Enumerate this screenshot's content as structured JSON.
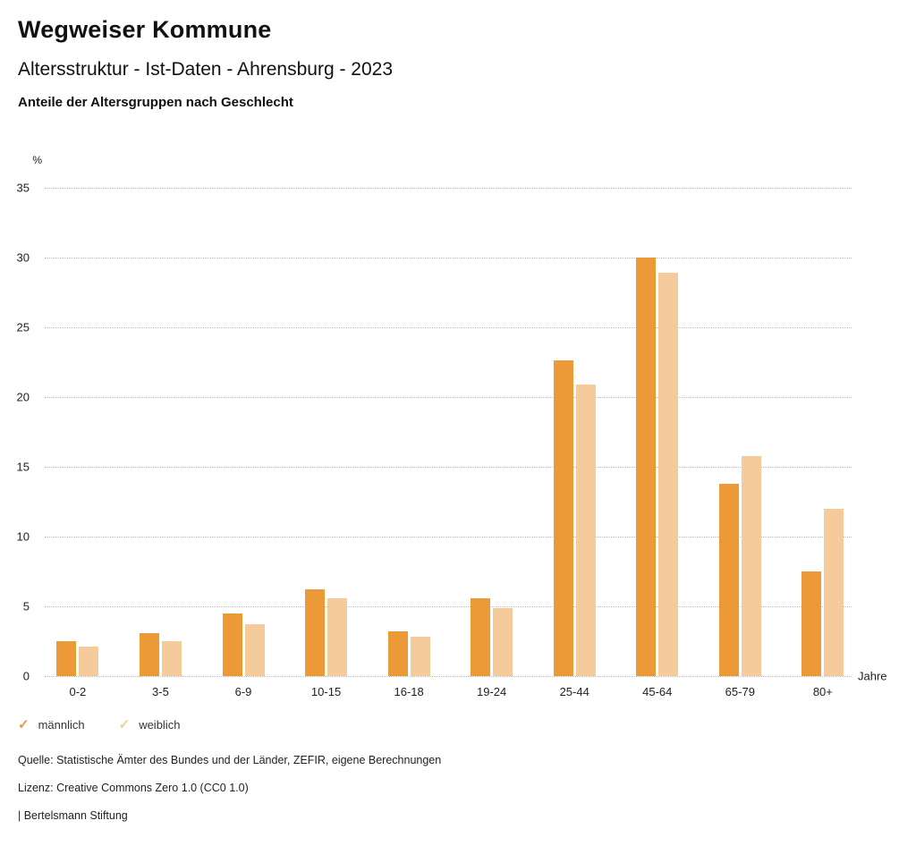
{
  "header": {
    "title": "Wegweiser Kommune",
    "subtitle": "Altersstruktur - Ist-Daten - Ahrensburg - 2023",
    "chart_heading": "Anteile der Altersgruppen nach Geschlecht"
  },
  "chart_data": {
    "type": "bar",
    "title": "Anteile der Altersgruppen nach Geschlecht",
    "categories": [
      "0-2",
      "3-5",
      "6-9",
      "10-15",
      "16-18",
      "19-24",
      "25-44",
      "45-64",
      "65-79",
      "80+"
    ],
    "series": [
      {
        "name": "männlich",
        "color": "#EC9938",
        "values": [
          2.5,
          3.1,
          4.5,
          6.2,
          3.2,
          5.6,
          22.6,
          30.0,
          13.8,
          7.5
        ]
      },
      {
        "name": "weiblich",
        "color": "#F5CB9B",
        "values": [
          2.1,
          2.5,
          3.7,
          5.6,
          2.8,
          4.9,
          20.9,
          28.9,
          15.8,
          12.0
        ]
      }
    ],
    "ylabel": "%",
    "xlabel": "Jahre",
    "ylim": [
      0,
      35
    ],
    "yticks": [
      0,
      5,
      10,
      15,
      20,
      25,
      30,
      35
    ],
    "grid": "horizontal-dotted",
    "legend_position": "bottom-left"
  },
  "legend": {
    "check_glyph": "✓",
    "items": [
      {
        "label": "männlich",
        "color": "#EC9938"
      },
      {
        "label": "weiblich",
        "color": "#F5CB9B"
      }
    ]
  },
  "footer": {
    "source": "Quelle: Statistische Ämter des Bundes und der Länder, ZEFIR, eigene Berechnungen",
    "license": "Lizenz: Creative Commons Zero 1.0 (CC0 1.0)",
    "attribution": "| Bertelsmann Stiftung"
  }
}
